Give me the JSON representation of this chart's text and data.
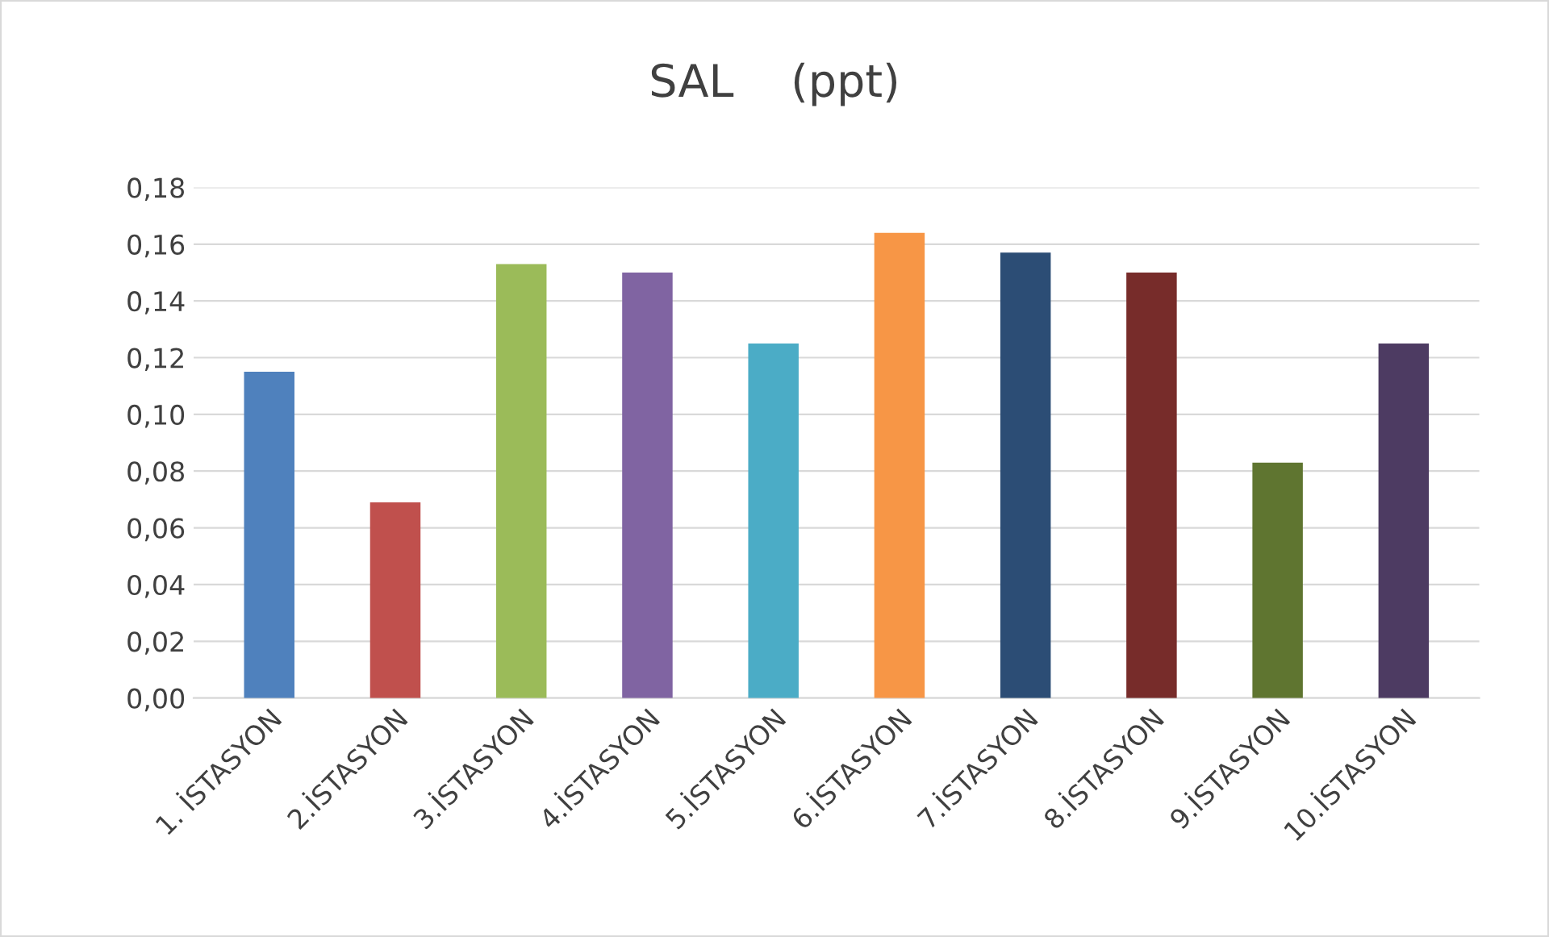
{
  "chart_data": {
    "type": "bar",
    "title": "SAL    (ppt)",
    "categories": [
      "1. İSTASYON",
      "2.İSTASYON",
      "3.İSTASYON",
      "4.İSTASYON",
      "5.İSTASYON",
      "6.İSTASYON",
      "7.İSTASYON",
      "8.İSTASYON",
      "9.İSTASYON",
      "10.İSTASYON"
    ],
    "values": [
      0.115,
      0.069,
      0.153,
      0.15,
      0.125,
      0.164,
      0.157,
      0.15,
      0.083,
      0.125
    ],
    "colors": [
      "#4f81bd",
      "#c0504d",
      "#9bbb59",
      "#8064a2",
      "#4bacc6",
      "#f79646",
      "#2c4d75",
      "#772c2a",
      "#5f7530",
      "#4d3b62"
    ],
    "ylim": [
      0,
      0.18
    ],
    "yticks": [
      {
        "value": 0,
        "label": "0,00"
      },
      {
        "value": 0.02,
        "label": "0,02"
      },
      {
        "value": 0.04,
        "label": "0,04"
      },
      {
        "value": 0.06,
        "label": "0,06"
      },
      {
        "value": 0.08,
        "label": "0,08"
      },
      {
        "value": 0.1,
        "label": "0,10"
      },
      {
        "value": 0.12,
        "label": "0,12"
      },
      {
        "value": 0.14,
        "label": "0,14"
      },
      {
        "value": 0.16,
        "label": "0,16"
      },
      {
        "value": 0.18,
        "label": "0,18"
      }
    ],
    "grid": "y"
  }
}
